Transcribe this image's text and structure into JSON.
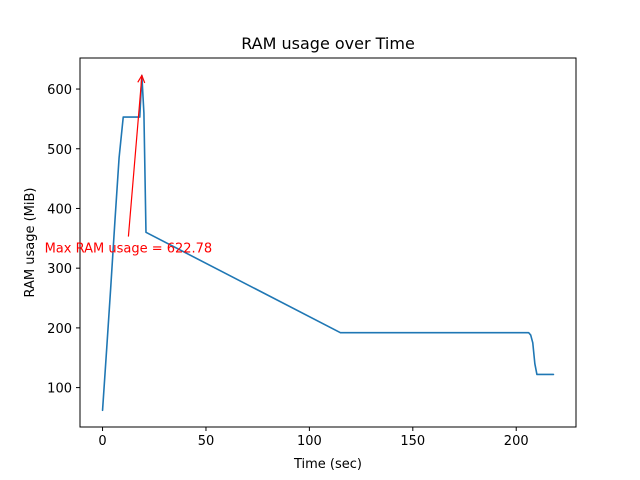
{
  "chart_data": {
    "type": "line",
    "title": "RAM usage over Time",
    "xlabel": "Time (sec)",
    "ylabel": "RAM usage (MiB)",
    "xlim": [
      -10.9,
      228.9
    ],
    "ylim": [
      34,
      652
    ],
    "xticks": [
      0,
      50,
      100,
      150,
      200
    ],
    "yticks": [
      100,
      200,
      300,
      400,
      500,
      600
    ],
    "grid": false,
    "series": [
      {
        "color": "#1f77b4",
        "x": [
          0,
          2,
          4,
          6,
          8,
          10,
          12,
          14,
          16,
          18,
          19,
          20,
          21,
          115,
          206,
          207,
          208,
          209,
          210,
          212,
          218
        ],
        "y": [
          62,
          165,
          270,
          380,
          485,
          553,
          553,
          553,
          553,
          553,
          622.78,
          560,
          360,
          192,
          192,
          188,
          175,
          140,
          122,
          122,
          122
        ]
      }
    ],
    "annotations": [
      {
        "text": "Max RAM usage = 622.78",
        "color": "#ff0000",
        "point": [
          19,
          622.78
        ],
        "text_anchor": [
          12.5,
          353
        ]
      }
    ]
  }
}
